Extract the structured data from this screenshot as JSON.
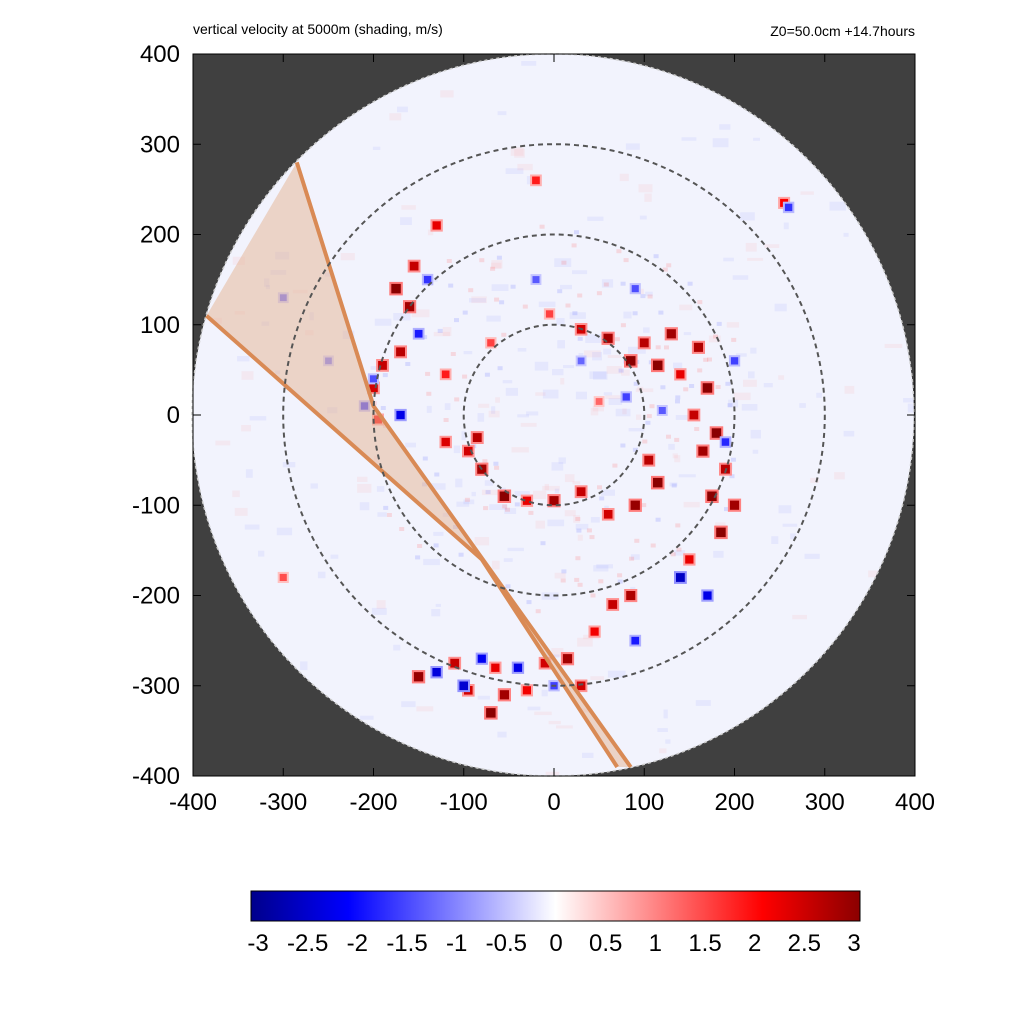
{
  "header": {
    "title": "vertical velocity at 5000m (shading, m/s)",
    "info": "Z0=50.0cm  +14.7hours"
  },
  "colors": {
    "outside_mask": "#404040",
    "band_fill": "#e6b89a",
    "band_edge": "#d98a55",
    "range_ring": "#555555",
    "negative_max": "#00008b",
    "negative_mid": "#0000ff",
    "zero": "#ffffff",
    "positive_mid": "#ff0000",
    "positive_max": "#8b0000"
  },
  "chart_data": {
    "type": "heatmap",
    "title": "vertical velocity at 5000m (shading, m/s)",
    "annotation": "Z0=50.0cm  +14.7hours",
    "xlim": [
      -400,
      400
    ],
    "ylim": [
      -400,
      400
    ],
    "x_ticks": [
      "-400",
      "-300",
      "-200",
      "-100",
      "0",
      "100",
      "200",
      "300",
      "400"
    ],
    "y_ticks": [
      "400",
      "300",
      "200",
      "100",
      "0",
      "-100",
      "-200",
      "-300",
      "-400"
    ],
    "x_tick_values": [
      -400,
      -300,
      -200,
      -100,
      0,
      100,
      200,
      300,
      400
    ],
    "y_tick_values": [
      400,
      300,
      200,
      100,
      0,
      -100,
      -200,
      -300,
      -400
    ],
    "domain_radius": 400,
    "range_rings": [
      100,
      200,
      300
    ],
    "shaded_band": {
      "left_edge": [
        [
          -385,
          110
        ],
        [
          -80,
          -160
        ],
        [
          70,
          -390
        ]
      ],
      "right_edge": [
        [
          -285,
          280
        ],
        [
          -200,
          10
        ],
        [
          85,
          -390
        ]
      ]
    },
    "colorbar": {
      "min": -3,
      "max": 3,
      "ticks": [
        "-3",
        "-2.5",
        "-2",
        "-1.5",
        "-1",
        "-0.5",
        "0",
        "0.5",
        "1",
        "1.5",
        "2",
        "2.5",
        "3"
      ]
    },
    "updraft_cells": [
      [
        -5,
        112,
        1.5
      ],
      [
        30,
        95,
        2.4
      ],
      [
        60,
        85,
        2.8
      ],
      [
        85,
        60,
        3
      ],
      [
        100,
        80,
        2.6
      ],
      [
        115,
        55,
        3
      ],
      [
        130,
        90,
        2.8
      ],
      [
        140,
        45,
        2.2
      ],
      [
        160,
        75,
        2.7
      ],
      [
        170,
        30,
        3
      ],
      [
        155,
        0,
        2.5
      ],
      [
        180,
        -20,
        3
      ],
      [
        165,
        -40,
        2.8
      ],
      [
        190,
        -60,
        2.6
      ],
      [
        175,
        -90,
        3
      ],
      [
        200,
        -100,
        2.8
      ],
      [
        185,
        -130,
        3
      ],
      [
        150,
        -160,
        2.2
      ],
      [
        115,
        -75,
        3
      ],
      [
        105,
        -50,
        2.6
      ],
      [
        90,
        -100,
        2.9
      ],
      [
        60,
        -110,
        2.4
      ],
      [
        30,
        -85,
        2.5
      ],
      [
        0,
        -95,
        2.8
      ],
      [
        -30,
        -95,
        2.2
      ],
      [
        -55,
        -90,
        3
      ],
      [
        -80,
        -60,
        2.8
      ],
      [
        -95,
        -40,
        2.4
      ],
      [
        -85,
        -25,
        2.6
      ],
      [
        -120,
        -30,
        2.3
      ],
      [
        -195,
        -5,
        2
      ],
      [
        -200,
        30,
        2.4
      ],
      [
        -190,
        55,
        2.5
      ],
      [
        -170,
        70,
        2.6
      ],
      [
        -160,
        120,
        2.8
      ],
      [
        -175,
        140,
        3
      ],
      [
        -155,
        165,
        2.5
      ],
      [
        -130,
        210,
        2.2
      ],
      [
        -20,
        260,
        1.8
      ],
      [
        255,
        235,
        2
      ],
      [
        85,
        -200,
        2.7
      ],
      [
        65,
        -210,
        2.5
      ],
      [
        45,
        -240,
        2.1
      ],
      [
        15,
        -270,
        2.8
      ],
      [
        -10,
        -275,
        2.4
      ],
      [
        -65,
        -280,
        2.2
      ],
      [
        -55,
        -310,
        2.8
      ],
      [
        -110,
        -275,
        2.5
      ],
      [
        -150,
        -290,
        2.9
      ],
      [
        -95,
        -305,
        2.4
      ],
      [
        -70,
        -330,
        3
      ],
      [
        -30,
        -305,
        2.1
      ],
      [
        30,
        -300,
        2.4
      ],
      [
        -300,
        -180,
        1.4
      ],
      [
        50,
        15,
        1.2
      ],
      [
        -120,
        45,
        1.8
      ],
      [
        -70,
        80,
        1.5
      ]
    ],
    "downdraft_cells": [
      [
        -210,
        10,
        -1.6
      ],
      [
        -170,
        0,
        -2.2
      ],
      [
        -200,
        40,
        -1.4
      ],
      [
        -150,
        90,
        -1.8
      ],
      [
        -140,
        150,
        -1.6
      ],
      [
        30,
        60,
        -1.2
      ],
      [
        80,
        20,
        -1.5
      ],
      [
        120,
        5,
        -1.3
      ],
      [
        200,
        60,
        -1.5
      ],
      [
        190,
        -30,
        -1.7
      ],
      [
        -100,
        -300,
        -2.4
      ],
      [
        -130,
        -285,
        -2.3
      ],
      [
        -80,
        -270,
        -2.1
      ],
      [
        -40,
        -280,
        -2.2
      ],
      [
        0,
        -300,
        -1.5
      ],
      [
        140,
        -180,
        -2.5
      ],
      [
        170,
        -200,
        -2.2
      ],
      [
        90,
        -250,
        -1.8
      ],
      [
        -20,
        150,
        -1.3
      ],
      [
        90,
        140,
        -1.4
      ],
      [
        260,
        230,
        -1.6
      ],
      [
        -300,
        130,
        -1.2
      ],
      [
        -250,
        60,
        -1.1
      ]
    ]
  },
  "labels": {
    "colorbar_ticks": [
      "-3",
      "-2.5",
      "-2",
      "-1.5",
      "-1",
      "-0.5",
      "0",
      "0.5",
      "1",
      "1.5",
      "2",
      "2.5",
      "3"
    ]
  }
}
